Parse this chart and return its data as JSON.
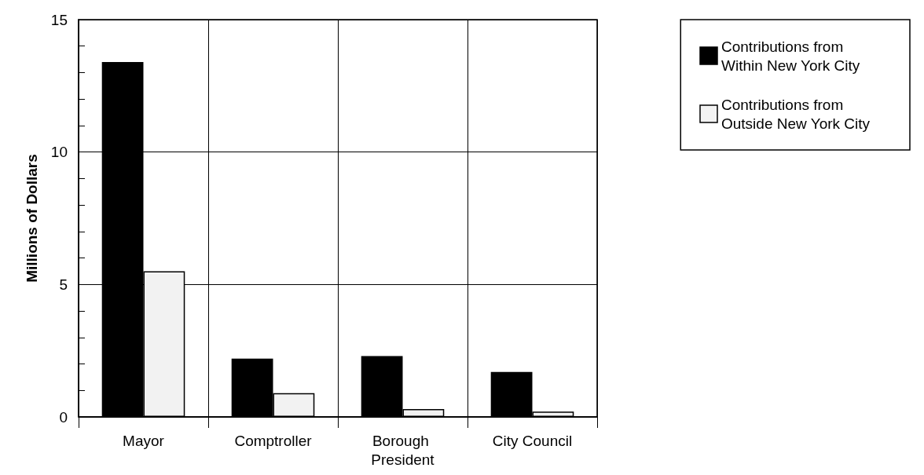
{
  "chart_data": {
    "type": "bar",
    "ylabel": "Millions of Dollars",
    "categories": [
      "Mayor",
      "Comptroller",
      "Borough President",
      "City Council"
    ],
    "series": [
      {
        "name": "Contributions from Within New York City",
        "color": "#000000",
        "values": [
          13.4,
          2.2,
          2.3,
          1.7
        ]
      },
      {
        "name": "Contributions from Outside New York City",
        "color": "#f2f2f2",
        "values": [
          5.5,
          0.9,
          0.3,
          0.2
        ]
      }
    ],
    "ylim": [
      0,
      15
    ],
    "yticks": [
      0,
      {
        "value": 1,
        "label": null
      },
      {
        "value": 2,
        "label": null
      },
      {
        "value": 3,
        "label": null
      },
      {
        "value": 4,
        "label": null
      },
      5,
      {
        "value": 6,
        "label": null
      },
      {
        "value": 7,
        "label": null
      },
      {
        "value": 8,
        "label": null
      },
      {
        "value": 9,
        "label": null
      },
      10,
      {
        "value": 11,
        "label": null
      },
      {
        "value": 12,
        "label": null
      },
      {
        "value": 13,
        "label": null
      },
      {
        "value": 14,
        "label": null
      },
      15
    ],
    "grid": true,
    "legend": "top right"
  }
}
